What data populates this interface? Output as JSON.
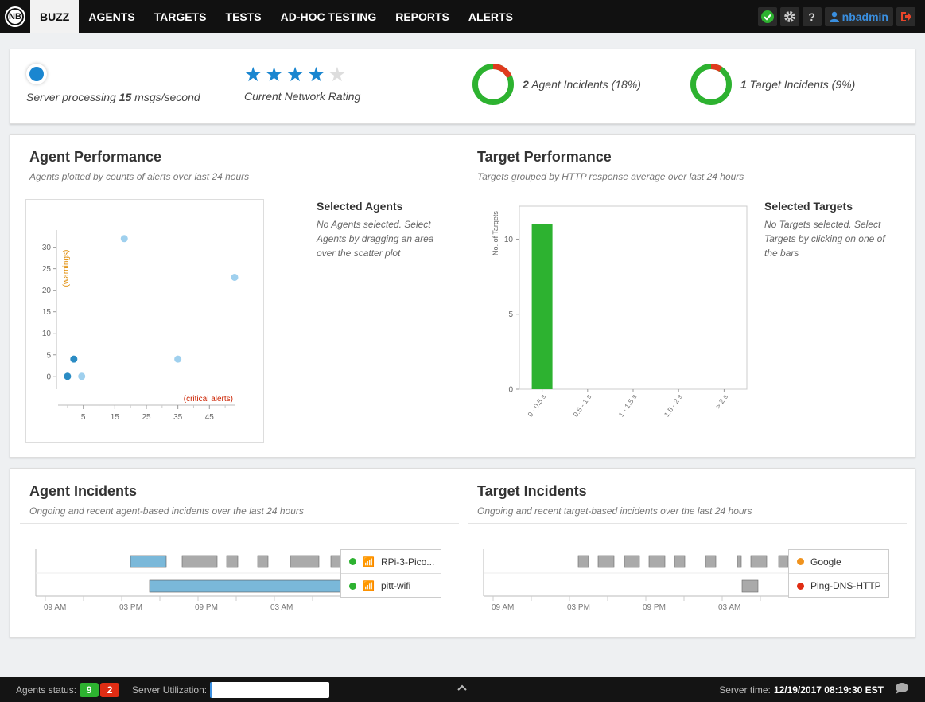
{
  "nav": {
    "logo_text": "NB",
    "items": [
      {
        "label": "BUZZ",
        "active": true
      },
      {
        "label": "AGENTS"
      },
      {
        "label": "TARGETS"
      },
      {
        "label": "TESTS"
      },
      {
        "label": "AD-HOC TESTING"
      },
      {
        "label": "REPORTS"
      },
      {
        "label": "ALERTS"
      }
    ],
    "help_label": "?",
    "username": "nbadmin",
    "colors": {
      "ok": "#2db230",
      "logout": "#e8452a",
      "user": "#3a8fe0"
    }
  },
  "summary": {
    "server_prefix": "Server processing ",
    "server_rate": "15",
    "server_suffix": " msgs/second",
    "rating_caption": "Current Network Rating",
    "rating_stars": 4,
    "rating_max": 5,
    "agent_incidents_count": "2",
    "agent_incidents_text": " Agent Incidents (18%)",
    "agent_incidents_fraction": 0.18,
    "target_incidents_count": "1",
    "target_incidents_text": " Target Incidents (9%)",
    "target_incidents_fraction": 0.09
  },
  "agent_performance": {
    "title": "Agent Performance",
    "subtitle": "Agents plotted by counts of alerts over last 24 hours",
    "selected_title": "Selected Agents",
    "selected_text": "No Agents selected. Select Agents by dragging an area over the scatter plot"
  },
  "target_performance": {
    "title": "Target Performance",
    "subtitle": "Targets grouped by HTTP response average over last 24 hours",
    "selected_title": "Selected Targets",
    "selected_text": "No Targets selected. Select Targets by clicking on one of the bars"
  },
  "chart_data": [
    {
      "type": "scatter",
      "xlabel": "(critical alerts)",
      "ylabel": "(warnings)",
      "x_ticks": [
        5,
        15,
        25,
        35,
        45
      ],
      "y_ticks": [
        0,
        5,
        10,
        15,
        20,
        25,
        30
      ],
      "xlim": [
        -3,
        53
      ],
      "ylim": [
        -3,
        34
      ],
      "points": [
        {
          "x": 0,
          "y": 0,
          "dark": true
        },
        {
          "x": 2,
          "y": 4,
          "dark": true
        },
        {
          "x": 4.5,
          "y": 0,
          "dark": false
        },
        {
          "x": 18,
          "y": 32,
          "dark": false
        },
        {
          "x": 35,
          "y": 4,
          "dark": false
        },
        {
          "x": 53,
          "y": 23,
          "dark": false
        }
      ],
      "colors": {
        "dark": "#2b8cc4",
        "light": "#9fd0ee",
        "xlabel": "#cc2200",
        "ylabel": "#e08a00"
      }
    },
    {
      "type": "bar",
      "ylabel": "No. of Targets",
      "categories": [
        "0 - 0.5 s",
        "0.5 - 1 s",
        "1 - 1.5 s",
        "1.5 - 2 s",
        "> 2 s"
      ],
      "values": [
        11,
        0,
        0,
        0,
        0
      ],
      "y_ticks": [
        0,
        5,
        10
      ],
      "ylim": [
        0,
        12.2
      ],
      "color": "#2db230"
    }
  ],
  "agent_incidents": {
    "title": "Agent Incidents",
    "subtitle": "Ongoing and recent agent-based incidents over the last 24 hours",
    "legend": [
      {
        "label": "RPi-3-Pico...",
        "color": "#2db230"
      },
      {
        "label": "pitt-wifi",
        "color": "#2db230"
      }
    ],
    "axis_labels": [
      "09 AM",
      "03 PM",
      "09 PM",
      "03 AM"
    ]
  },
  "target_incidents": {
    "title": "Target Incidents",
    "subtitle": "Ongoing and recent target-based incidents over the last 24 hours",
    "legend": [
      {
        "label": "Google",
        "color": "#f0931e"
      },
      {
        "label": "Ping-DNS-HTTP",
        "color": "#e02d14"
      }
    ],
    "axis_labels": [
      "09 AM",
      "03 PM",
      "09 PM",
      "03 AM"
    ]
  },
  "footer": {
    "agents_status_label": "Agents status:",
    "agents_ok": "9",
    "agents_bad": "2",
    "server_util_label": "Server Utilization:",
    "server_time_label": "Server time:",
    "server_time": "12/19/2017 08:19:30 EST"
  }
}
